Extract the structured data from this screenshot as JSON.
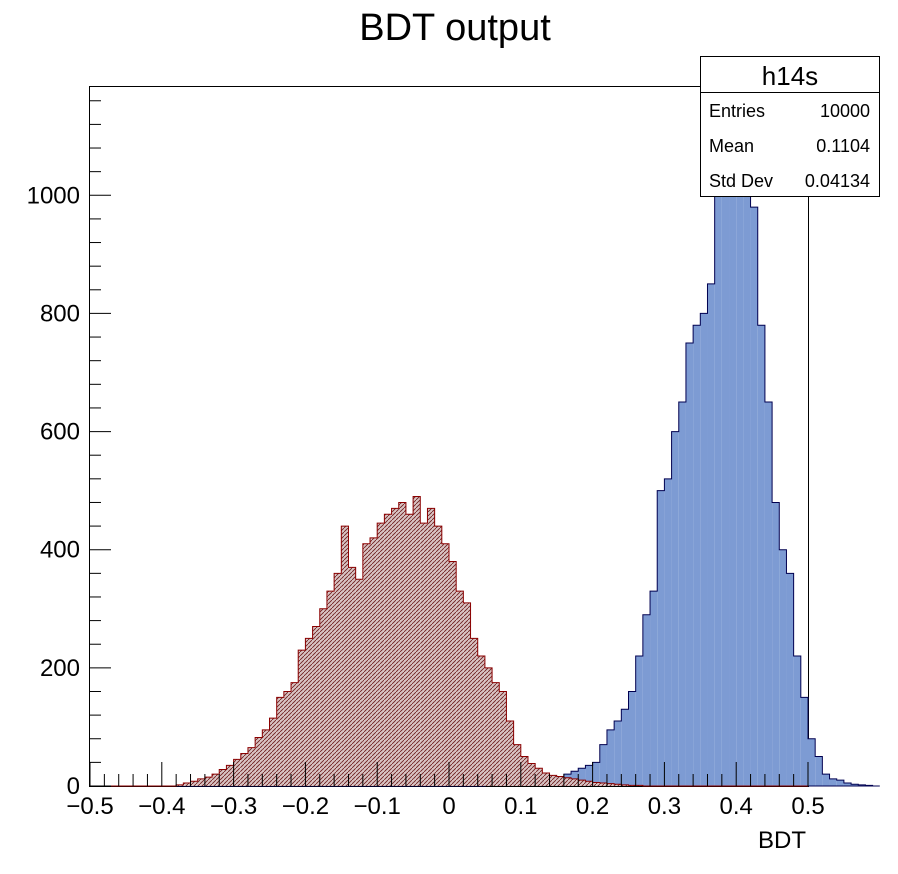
{
  "chart_data": {
    "type": "bar",
    "title": "BDT output",
    "xlabel": "BDT",
    "ylabel": "",
    "xlim": [
      -0.5,
      0.5
    ],
    "ylim": [
      0,
      1185
    ],
    "bins": 100,
    "x_ticks": [
      "−0.5",
      "−0.4",
      "−0.3",
      "−0.2",
      "−0.1",
      "0",
      "0.1",
      "0.2",
      "0.3",
      "0.4",
      "0.5"
    ],
    "y_ticks": [
      "0",
      "200",
      "400",
      "600",
      "800",
      "1000"
    ],
    "y_tick_values": [
      0,
      200,
      400,
      600,
      800,
      1000
    ],
    "series": [
      {
        "fill": "#7d9bd3",
        "stroke": "#000050",
        "style": "solid",
        "values": [
          0,
          0,
          0,
          0,
          0,
          0,
          0,
          0,
          0,
          0,
          0,
          0,
          0,
          0,
          0,
          0,
          0,
          0,
          0,
          0,
          0,
          0,
          0,
          0,
          0,
          0,
          0,
          0,
          0,
          0,
          0,
          0,
          0,
          0,
          0,
          0,
          0,
          0,
          0,
          0,
          0,
          0,
          0,
          0,
          0,
          0,
          0,
          0,
          0,
          0,
          0,
          0,
          0,
          0,
          0,
          1,
          1,
          2,
          3,
          5,
          5,
          8,
          10,
          12,
          14,
          15,
          20,
          25,
          30,
          35,
          40,
          70,
          95,
          110,
          130,
          160,
          220,
          290,
          330,
          500,
          520,
          600,
          650,
          750,
          780,
          800,
          850,
          1100,
          1130,
          1180,
          1050,
          1030,
          980,
          780,
          650,
          480,
          400,
          360,
          220,
          150,
          80,
          50,
          20,
          12,
          10,
          5,
          3,
          2,
          1,
          0
        ]
      },
      {
        "fill": "#c9a6a6",
        "stroke": "#8b0000",
        "style": "hatched",
        "values": [
          0,
          0,
          0,
          0,
          0,
          0,
          0,
          0,
          0,
          0,
          0,
          0,
          2,
          5,
          8,
          12,
          15,
          20,
          28,
          35,
          45,
          55,
          65,
          82,
          95,
          115,
          150,
          160,
          175,
          230,
          250,
          270,
          300,
          330,
          360,
          440,
          370,
          350,
          410,
          420,
          445,
          460,
          470,
          480,
          460,
          490,
          445,
          470,
          440,
          410,
          380,
          330,
          310,
          250,
          220,
          200,
          175,
          160,
          110,
          70,
          50,
          38,
          30,
          22,
          18,
          16,
          14,
          12,
          10,
          8,
          6,
          5,
          4,
          3,
          2,
          1,
          1,
          0,
          0,
          0,
          0,
          0,
          0,
          0,
          0,
          0,
          0,
          0,
          0,
          0,
          0,
          0,
          0,
          0,
          0,
          0,
          0,
          0,
          0,
          0
        ]
      }
    ]
  },
  "stats_box": {
    "title": "h14s",
    "rows": [
      {
        "label": "Entries",
        "value": "10000"
      },
      {
        "label": "Mean",
        "value": "0.1104"
      },
      {
        "label": "Std Dev",
        "value": "0.04134"
      }
    ]
  }
}
